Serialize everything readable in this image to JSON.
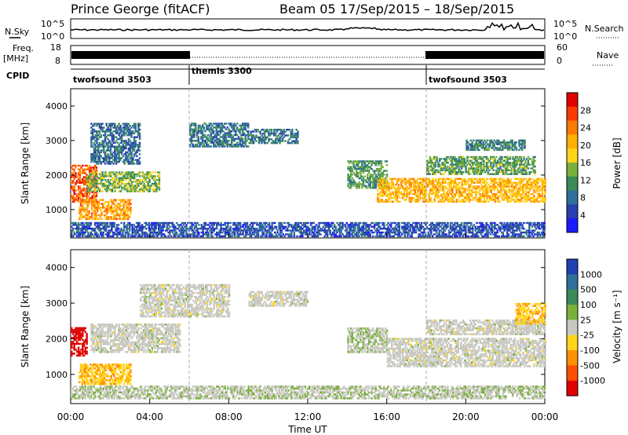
{
  "header": {
    "station": "Prince George (fitACF)",
    "beam": "Beam 05",
    "dates": "17/Sep/2015 – 18/Sep/2015"
  },
  "top_panels": {
    "nsky_label": "N.Sky",
    "nsky_tick_hi": "10^5",
    "nsky_tick_lo": "10^0",
    "nsearch_label": "N.Search",
    "nsearch_tick_hi": "10^5",
    "nsearch_tick_lo": "10^0",
    "freq_label": "Freq.",
    "freq_unit": "[MHz]",
    "freq_tick_hi": "18",
    "freq_tick_lo": "8",
    "nave_label": "Nave",
    "nave_tick_hi": "60",
    "nave_tick_lo": "0",
    "cpid_label": "CPID",
    "cpid_segments": [
      {
        "label": "twofsound 3503",
        "start_h": 0,
        "end_h": 6
      },
      {
        "label": "themis 3300",
        "start_h": 6,
        "end_h": 18
      },
      {
        "label": "twofsound 3503",
        "start_h": 18,
        "end_h": 24
      }
    ]
  },
  "panels": {
    "power": {
      "ylabel": "Slant Range [km]",
      "cbar_label": "Power [dB]",
      "cbar_ticks": [
        "4",
        "8",
        "12",
        "16",
        "20",
        "24",
        "28"
      ],
      "cbar_colors": [
        "#1a1aff",
        "#2a3fb0",
        "#2f6f9a",
        "#3a8a5a",
        "#7ab03c",
        "#ffd51a",
        "#ffb000",
        "#ff7a00",
        "#ff3a00",
        "#e00000"
      ]
    },
    "velocity": {
      "ylabel": "Slant Range [km]",
      "cbar_label": "Velocity [m s⁻¹]",
      "cbar_ticks": [
        "1000",
        "500",
        "100",
        "25",
        "-25",
        "-100",
        "-500",
        "-1000"
      ],
      "cbar_colors": [
        "#2040b0",
        "#2f6f9a",
        "#3a8a5a",
        "#7ab03c",
        "#c8c8c0",
        "#ffd51a",
        "#ff9000",
        "#ff5000",
        "#e00000"
      ]
    }
  },
  "y_ticks": [
    "1000",
    "2000",
    "3000",
    "4000"
  ],
  "x_ticks": [
    "00:00",
    "04:00",
    "08:00",
    "12:00",
    "16:00",
    "20:00",
    "00:00"
  ],
  "xlabel": "Time UT",
  "chart_data": [
    {
      "type": "heatmap",
      "title": "Power",
      "x_range_h": [
        0,
        24
      ],
      "y_range_km": [
        180,
        4500
      ],
      "cbar_range_db": [
        0,
        32
      ],
      "bands": [
        {
          "t0": 0.0,
          "t1": 1.3,
          "r0": 1200,
          "r1": 2300,
          "v": 26
        },
        {
          "t0": 0.4,
          "t1": 3.0,
          "r0": 700,
          "r1": 1300,
          "v": 22
        },
        {
          "t0": 0.8,
          "t1": 4.5,
          "r0": 1500,
          "r1": 2100,
          "v": 14
        },
        {
          "t0": 1.0,
          "t1": 3.5,
          "r0": 2300,
          "r1": 3500,
          "v": 8
        },
        {
          "t0": 6.0,
          "t1": 9.0,
          "r0": 2800,
          "r1": 3500,
          "v": 9
        },
        {
          "t0": 9.0,
          "t1": 11.5,
          "r0": 2900,
          "r1": 3300,
          "v": 9
        },
        {
          "t0": 14.0,
          "t1": 16.0,
          "r0": 1600,
          "r1": 2400,
          "v": 12
        },
        {
          "t0": 15.5,
          "t1": 24.0,
          "r0": 1200,
          "r1": 1900,
          "v": 20
        },
        {
          "t0": 18.0,
          "t1": 23.5,
          "r0": 2000,
          "r1": 2500,
          "v": 13
        },
        {
          "t0": 20.0,
          "t1": 23.0,
          "r0": 2700,
          "r1": 3000,
          "v": 10
        },
        {
          "t0": 0.0,
          "t1": 24.0,
          "r0": 200,
          "r1": 600,
          "v": 6
        }
      ]
    },
    {
      "type": "heatmap",
      "title": "Velocity",
      "x_range_h": [
        0,
        24
      ],
      "y_range_km": [
        180,
        4500
      ],
      "cbar_range_ms": [
        -1000,
        1000
      ],
      "bands": [
        {
          "t0": 0.0,
          "t1": 0.8,
          "r0": 1500,
          "r1": 2300,
          "v": -900
        },
        {
          "t0": 0.4,
          "t1": 3.0,
          "r0": 700,
          "r1": 1300,
          "v": -300
        },
        {
          "t0": 1.0,
          "t1": 5.5,
          "r0": 1600,
          "r1": 2400,
          "v": 0
        },
        {
          "t0": 3.5,
          "t1": 8.0,
          "r0": 2600,
          "r1": 3500,
          "v": 0
        },
        {
          "t0": 9.0,
          "t1": 12.0,
          "r0": 2900,
          "r1": 3300,
          "v": 0
        },
        {
          "t0": 14.0,
          "t1": 16.0,
          "r0": 1600,
          "r1": 2300,
          "v": 80
        },
        {
          "t0": 16.0,
          "t1": 24.0,
          "r0": 1200,
          "r1": 2000,
          "v": 0
        },
        {
          "t0": 18.0,
          "t1": 24.0,
          "r0": 2100,
          "r1": 2500,
          "v": 0
        },
        {
          "t0": 22.5,
          "t1": 24.0,
          "r0": 2400,
          "r1": 3000,
          "v": -300
        },
        {
          "t0": 0.0,
          "t1": 24.0,
          "r0": 300,
          "r1": 650,
          "v": 60
        }
      ]
    }
  ]
}
